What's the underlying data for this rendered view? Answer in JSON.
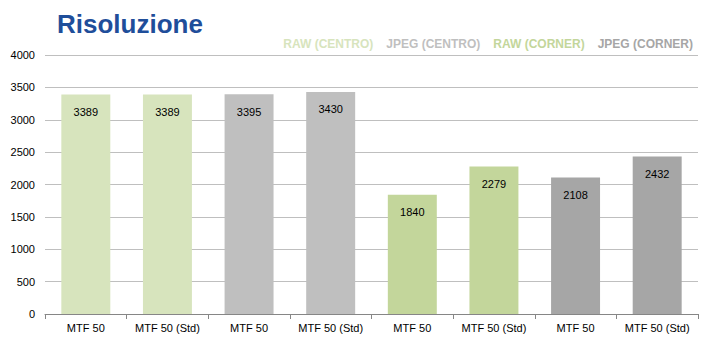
{
  "chart_data": {
    "type": "bar",
    "title": "Risoluzione",
    "categories": [
      "MTF 50",
      "MTF 50 (Std)",
      "MTF 50",
      "MTF 50 (Std)",
      "MTF 50",
      "MTF 50 (Std)",
      "MTF 50",
      "MTF 50 (Std)"
    ],
    "series": [
      {
        "name": "RAW (CENTRO)",
        "color": "#d7e4bd",
        "values": [
          3389,
          3389,
          null,
          null,
          null,
          null,
          null,
          null
        ]
      },
      {
        "name": "JPEG (CENTRO)",
        "color": "#bfbfbf",
        "values": [
          null,
          null,
          3395,
          3430,
          null,
          null,
          null,
          null
        ]
      },
      {
        "name": "RAW (CORNER)",
        "color": "#c3d69b",
        "values": [
          null,
          null,
          null,
          null,
          1840,
          2279,
          null,
          null
        ]
      },
      {
        "name": "JPEG (CORNER)",
        "color": "#a6a6a6",
        "values": [
          null,
          null,
          null,
          null,
          null,
          null,
          2108,
          2432
        ]
      }
    ],
    "ylim": [
      0,
      4000
    ],
    "yticks": [
      0,
      500,
      1000,
      1500,
      2000,
      2500,
      3000,
      3500,
      4000
    ],
    "grid": true,
    "legend": "upper right",
    "data_labels": true
  }
}
